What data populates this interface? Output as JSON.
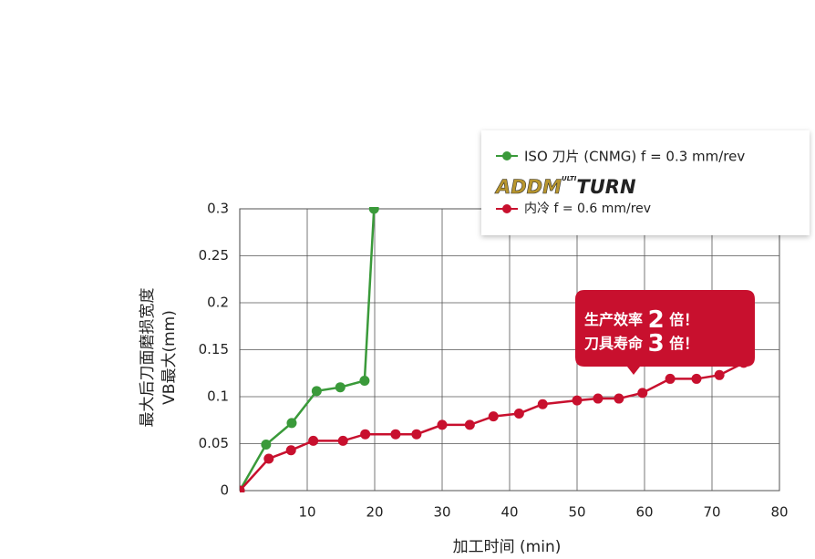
{
  "chart_data": {
    "type": "line",
    "x_label": "加工时间 (min)",
    "y_label": [
      "最大后刀面磨损宽度",
      "VB最大(mm)"
    ],
    "xlim": [
      0,
      80
    ],
    "xticks": [
      10,
      20,
      30,
      40,
      50,
      60,
      70,
      80
    ],
    "ylim": [
      0,
      0.3
    ],
    "yticks": [
      0,
      0.05,
      0.1,
      0.15,
      0.2,
      0.25,
      0.3
    ],
    "grid": true,
    "brand_logo": [
      "ADDM",
      "ULTI",
      "TURN"
    ],
    "series": [
      {
        "name": "ISO 刀片 (CNMG) f = 0.3 mm/rev",
        "color": "#3a9a3a",
        "x": [
          0,
          3.9,
          7.7,
          11.4,
          14.9,
          18.5,
          19.9
        ],
        "values": [
          0,
          0.049,
          0.072,
          0.106,
          0.11,
          0.117,
          0.3
        ]
      },
      {
        "name": "内冷 f = 0.6 mm/rev",
        "color": "#c8102e",
        "x": [
          0,
          4.3,
          7.6,
          10.9,
          15.3,
          18.6,
          23.1,
          26.2,
          30.0,
          34.1,
          37.6,
          41.4,
          44.9,
          50.0,
          53.1,
          56.2,
          59.7,
          63.8,
          67.7,
          71.1,
          74.7
        ],
        "values": [
          0,
          0.034,
          0.043,
          0.053,
          0.053,
          0.06,
          0.06,
          0.06,
          0.07,
          0.07,
          0.079,
          0.082,
          0.092,
          0.096,
          0.098,
          0.098,
          0.104,
          0.119,
          0.119,
          0.123,
          0.136
        ]
      }
    ],
    "annotation": [
      [
        "生产效率",
        "2",
        "倍！"
      ],
      [
        "刀具寿命",
        "3",
        "倍！"
      ]
    ]
  }
}
